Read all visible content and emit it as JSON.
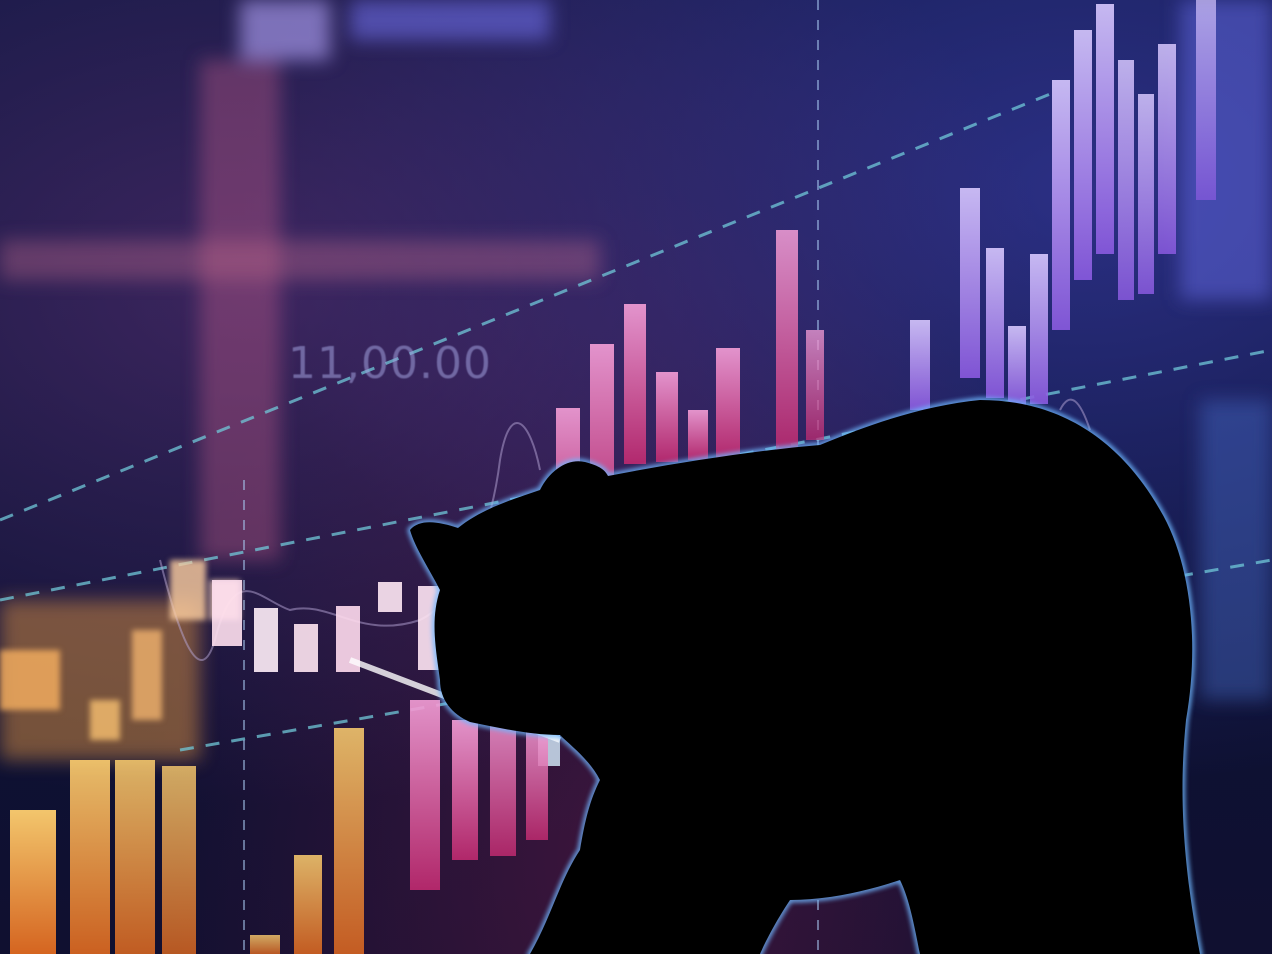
{
  "overlay": {
    "price_label": "11,00.00"
  },
  "colors": {
    "background": "#0b1236",
    "bar_warm": "#f0a040",
    "bar_pink": "#e060a8",
    "bar_violet": "#b080f0",
    "dashed_line": "#70c8d8",
    "silhouette": "#000000",
    "rim_light": "#6fb8ff"
  },
  "icons": {
    "subject": "bear-silhouette"
  }
}
